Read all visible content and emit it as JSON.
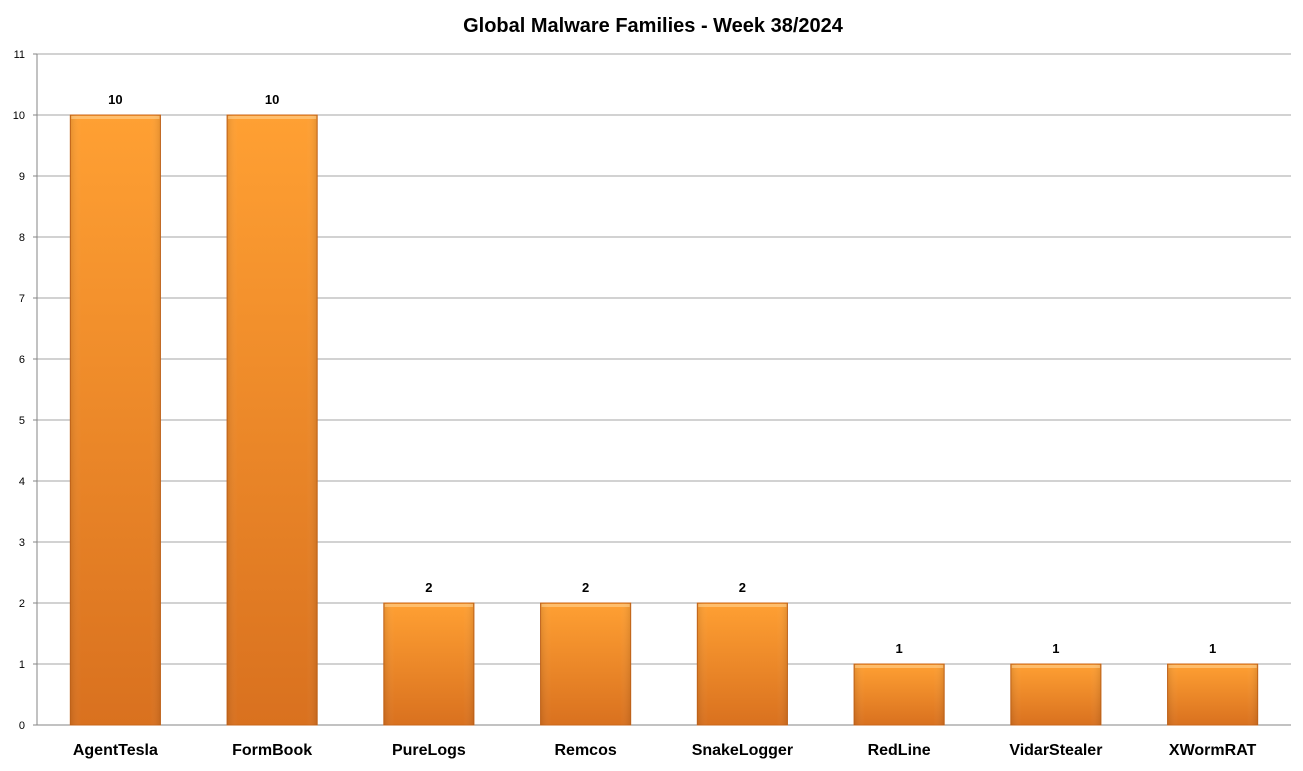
{
  "chart_data": {
    "type": "bar",
    "title": "Global Malware Families - Week 38/2024",
    "xlabel": "",
    "ylabel": "",
    "categories": [
      "AgentTesla",
      "FormBook",
      "PureLogs",
      "Remcos",
      "SnakeLogger",
      "RedLine",
      "VidarStealer",
      "XWormRAT"
    ],
    "values": [
      10,
      10,
      2,
      2,
      2,
      1,
      1,
      1
    ],
    "ylim": [
      0,
      11
    ],
    "yticks": [
      "0",
      "1",
      "2",
      "3",
      "4",
      "5",
      "6",
      "7",
      "8",
      "9",
      "10",
      "11"
    ],
    "data_labels": [
      "10",
      "10",
      "2",
      "2",
      "2",
      "1",
      "1",
      "1"
    ],
    "grid": true,
    "legend": "none",
    "colors": {
      "bar_light": "#FFA033",
      "bar_dark": "#D9711F",
      "bar_edge": "#C8661A",
      "grid": "#A6A6A6",
      "axis": "#868686"
    }
  }
}
